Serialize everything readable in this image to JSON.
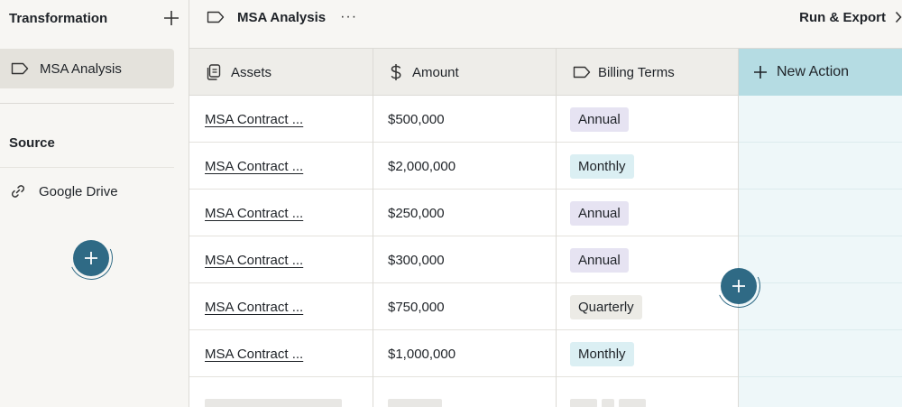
{
  "sidebar": {
    "title": "Transformation",
    "active_item": "MSA Analysis",
    "section_title": "Source",
    "source_item": "Google Drive"
  },
  "topbar": {
    "title": "MSA Analysis",
    "more": "···",
    "run_export": "Run & Export"
  },
  "table": {
    "columns": [
      {
        "label": "Assets",
        "icon": "document-icon"
      },
      {
        "label": "Amount",
        "icon": "dollar-icon"
      },
      {
        "label": "Billing Terms",
        "icon": "tag-icon"
      }
    ],
    "new_action_label": "New Action",
    "rows": [
      {
        "asset": "MSA Contract ...",
        "amount": "$500,000",
        "terms": "Annual"
      },
      {
        "asset": "MSA Contract ...",
        "amount": "$2,000,000",
        "terms": "Monthly"
      },
      {
        "asset": "MSA Contract ...",
        "amount": "$250,000",
        "terms": "Annual"
      },
      {
        "asset": "MSA Contract ...",
        "amount": "$300,000",
        "terms": "Annual"
      },
      {
        "asset": "MSA Contract ...",
        "amount": "$750,000",
        "terms": "Quarterly"
      },
      {
        "asset": "MSA Contract ...",
        "amount": "$1,000,000",
        "terms": "Monthly"
      }
    ]
  },
  "colors": {
    "accent": "#2f6a85",
    "new_action_header": "#b5dce3",
    "tag_annual": "#e6e3f2",
    "tag_monthly": "#dbeff3",
    "tag_quarterly": "#ecebe6"
  }
}
